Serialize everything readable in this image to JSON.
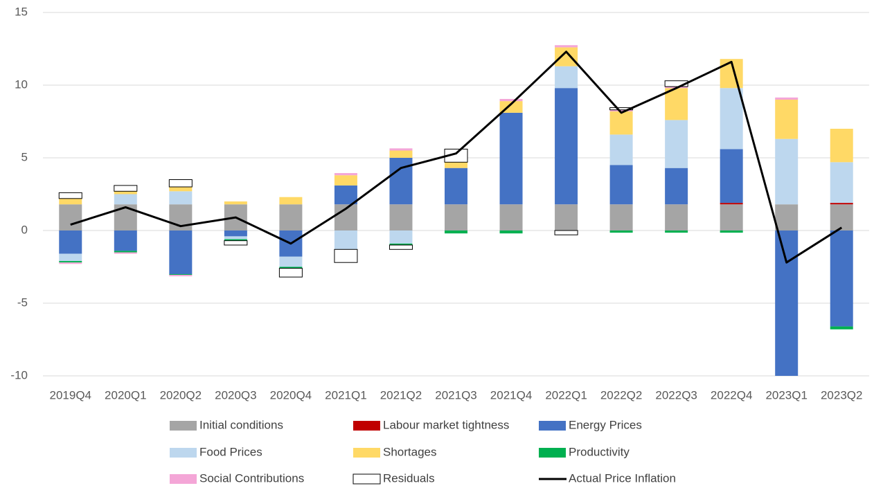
{
  "chart_data": {
    "type": "bar",
    "stacked": true,
    "categories": [
      "2019Q4",
      "2020Q1",
      "2020Q2",
      "2020Q3",
      "2020Q4",
      "2021Q1",
      "2021Q2",
      "2021Q3",
      "2021Q4",
      "2022Q1",
      "2022Q2",
      "2022Q3",
      "2022Q4",
      "2023Q1",
      "2023Q2"
    ],
    "series": [
      {
        "name": "Initial conditions",
        "color": "#a5a5a5",
        "values": [
          1.8,
          1.8,
          1.8,
          1.8,
          1.8,
          1.8,
          1.8,
          1.8,
          1.8,
          1.8,
          1.8,
          1.8,
          1.8,
          1.8,
          1.8
        ]
      },
      {
        "name": "Labour market tightness",
        "color": "#c00000",
        "values": [
          0,
          0,
          0,
          0,
          0,
          0,
          0,
          0,
          0,
          0,
          0,
          0,
          0.1,
          0,
          0.1
        ]
      },
      {
        "name": "Energy Prices",
        "color": "#4472c4",
        "values": [
          -1.6,
          -1.4,
          -3.0,
          -0.4,
          -1.8,
          1.3,
          3.2,
          2.5,
          6.3,
          8.0,
          2.7,
          2.5,
          3.7,
          -10,
          -6.6
        ]
      },
      {
        "name": "Food Prices",
        "color": "#bdd7ee",
        "values": [
          -0.5,
          0.7,
          0.9,
          -0.2,
          -0.7,
          -1.3,
          -0.9,
          0,
          0,
          1.5,
          2.1,
          3.3,
          4.2,
          4.5,
          2.8
        ]
      },
      {
        "name": "Shortages",
        "color": "#ffd966",
        "values": [
          0.4,
          0.2,
          0.3,
          0.2,
          0.5,
          0.7,
          0.5,
          0.4,
          0.8,
          1.3,
          1.6,
          2.2,
          2.0,
          2.7,
          2.3
        ]
      },
      {
        "name": "Productivity",
        "color": "#00b050",
        "values": [
          -0.1,
          -0.1,
          -0.05,
          -0.1,
          -0.1,
          0,
          -0.1,
          -0.2,
          -0.2,
          0,
          -0.15,
          -0.15,
          -0.15,
          0,
          -0.2
        ]
      },
      {
        "name": "Social Contributions",
        "color": "#f4a6d7",
        "values": [
          -0.1,
          -0.1,
          -0.1,
          0,
          0,
          0.15,
          0.15,
          0,
          0.15,
          0.15,
          0.1,
          0.1,
          0,
          0.15,
          0
        ]
      },
      {
        "name": "Residuals",
        "color": "#ffffff",
        "edge_color": "#000000",
        "values": [
          0.4,
          0.4,
          0.5,
          -0.3,
          -0.6,
          -0.9,
          -0.3,
          0.9,
          0,
          -0.3,
          0.15,
          0.4,
          0,
          0,
          0
        ]
      },
      {
        "name": "Actual Price Inflation",
        "type": "line",
        "color": "#000000",
        "values": [
          0.4,
          1.6,
          0.3,
          0.9,
          -0.9,
          1.5,
          4.3,
          5.3,
          8.7,
          12.3,
          8.1,
          9.8,
          11.6,
          -2.2,
          0.2
        ]
      }
    ],
    "ylim": [
      -10,
      15
    ],
    "yticks": [
      -10,
      -5,
      0,
      5,
      10,
      15
    ],
    "grid": true,
    "legend": "bottom"
  }
}
